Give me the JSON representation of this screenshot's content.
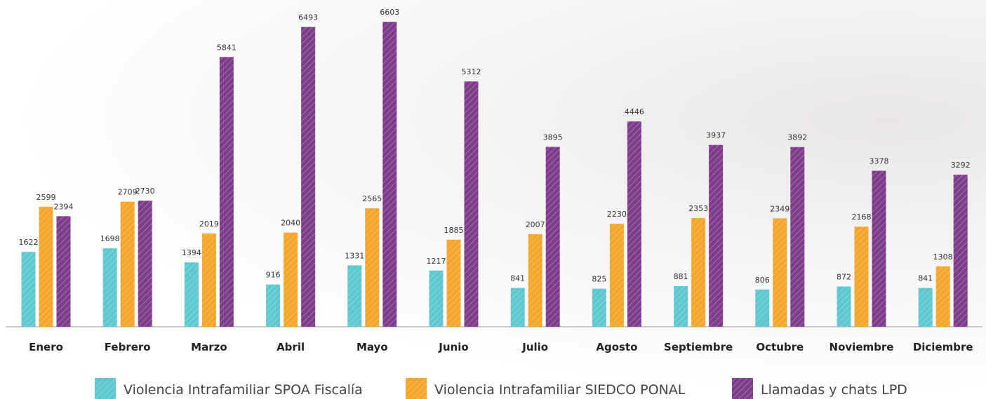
{
  "chart_data": {
    "type": "bar",
    "categories": [
      "Enero",
      "Febrero",
      "Marzo",
      "Abril",
      "Mayo",
      "Junio",
      "Julio",
      "Agosto",
      "Septiembre",
      "Octubre",
      "Noviembre",
      "Diciembre"
    ],
    "series": [
      {
        "name": "Violencia Intrafamiliar SPOA Fiscalía",
        "color": "#5ec6cf",
        "values": [
          1622,
          1698,
          1394,
          916,
          1331,
          1217,
          841,
          825,
          881,
          806,
          872,
          841
        ]
      },
      {
        "name": "Violencia Intrafamiliar SIEDCO PONAL",
        "color": "#f5a52a",
        "values": [
          2599,
          2709,
          2019,
          2040,
          2565,
          1885,
          2007,
          2230,
          2353,
          2349,
          2168,
          1308
        ]
      },
      {
        "name": "Llamadas y chats LPD",
        "color": "#7e3b8c",
        "values": [
          2394,
          2730,
          5841,
          6493,
          6603,
          5312,
          3895,
          4446,
          3937,
          3892,
          3378,
          3292
        ]
      }
    ],
    "ylim": [
      0,
      7000
    ],
    "hatch": true
  }
}
